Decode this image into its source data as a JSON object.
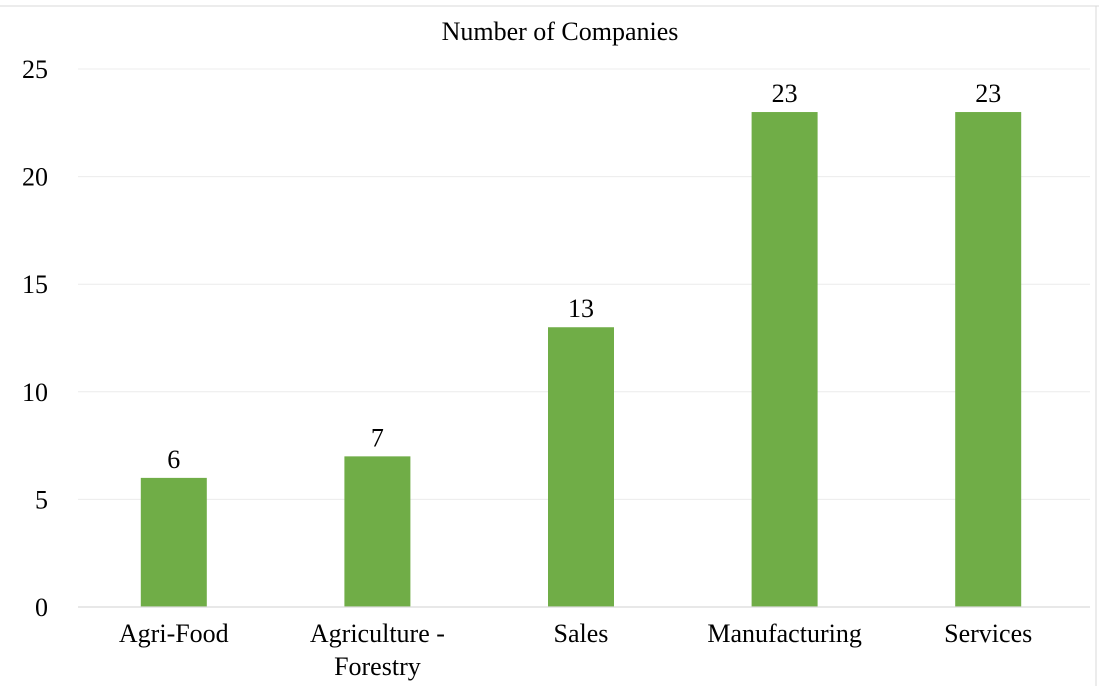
{
  "chart_data": {
    "type": "bar",
    "title": "Number of Companies",
    "xlabel": "",
    "ylabel": "",
    "categories": [
      "Agri-Food",
      "Agriculture - Forestry",
      "Sales",
      "Manufacturing",
      "Services"
    ],
    "category_label_lines": [
      [
        "Agri-Food"
      ],
      [
        "Agriculture -",
        "Forestry"
      ],
      [
        "Sales"
      ],
      [
        "Manufacturing"
      ],
      [
        "Services"
      ]
    ],
    "values": [
      6,
      7,
      13,
      23,
      23
    ],
    "data_labels": [
      "6",
      "7",
      "13",
      "23",
      "23"
    ],
    "ylim": [
      0,
      25
    ],
    "yticks": [
      0,
      5,
      10,
      15,
      20,
      25
    ],
    "ytick_labels": [
      "0",
      "5",
      "10",
      "15",
      "20",
      "25"
    ],
    "grid": true,
    "legend": "none",
    "bar_color": "#70ad47",
    "grid_color": "#ececec"
  }
}
